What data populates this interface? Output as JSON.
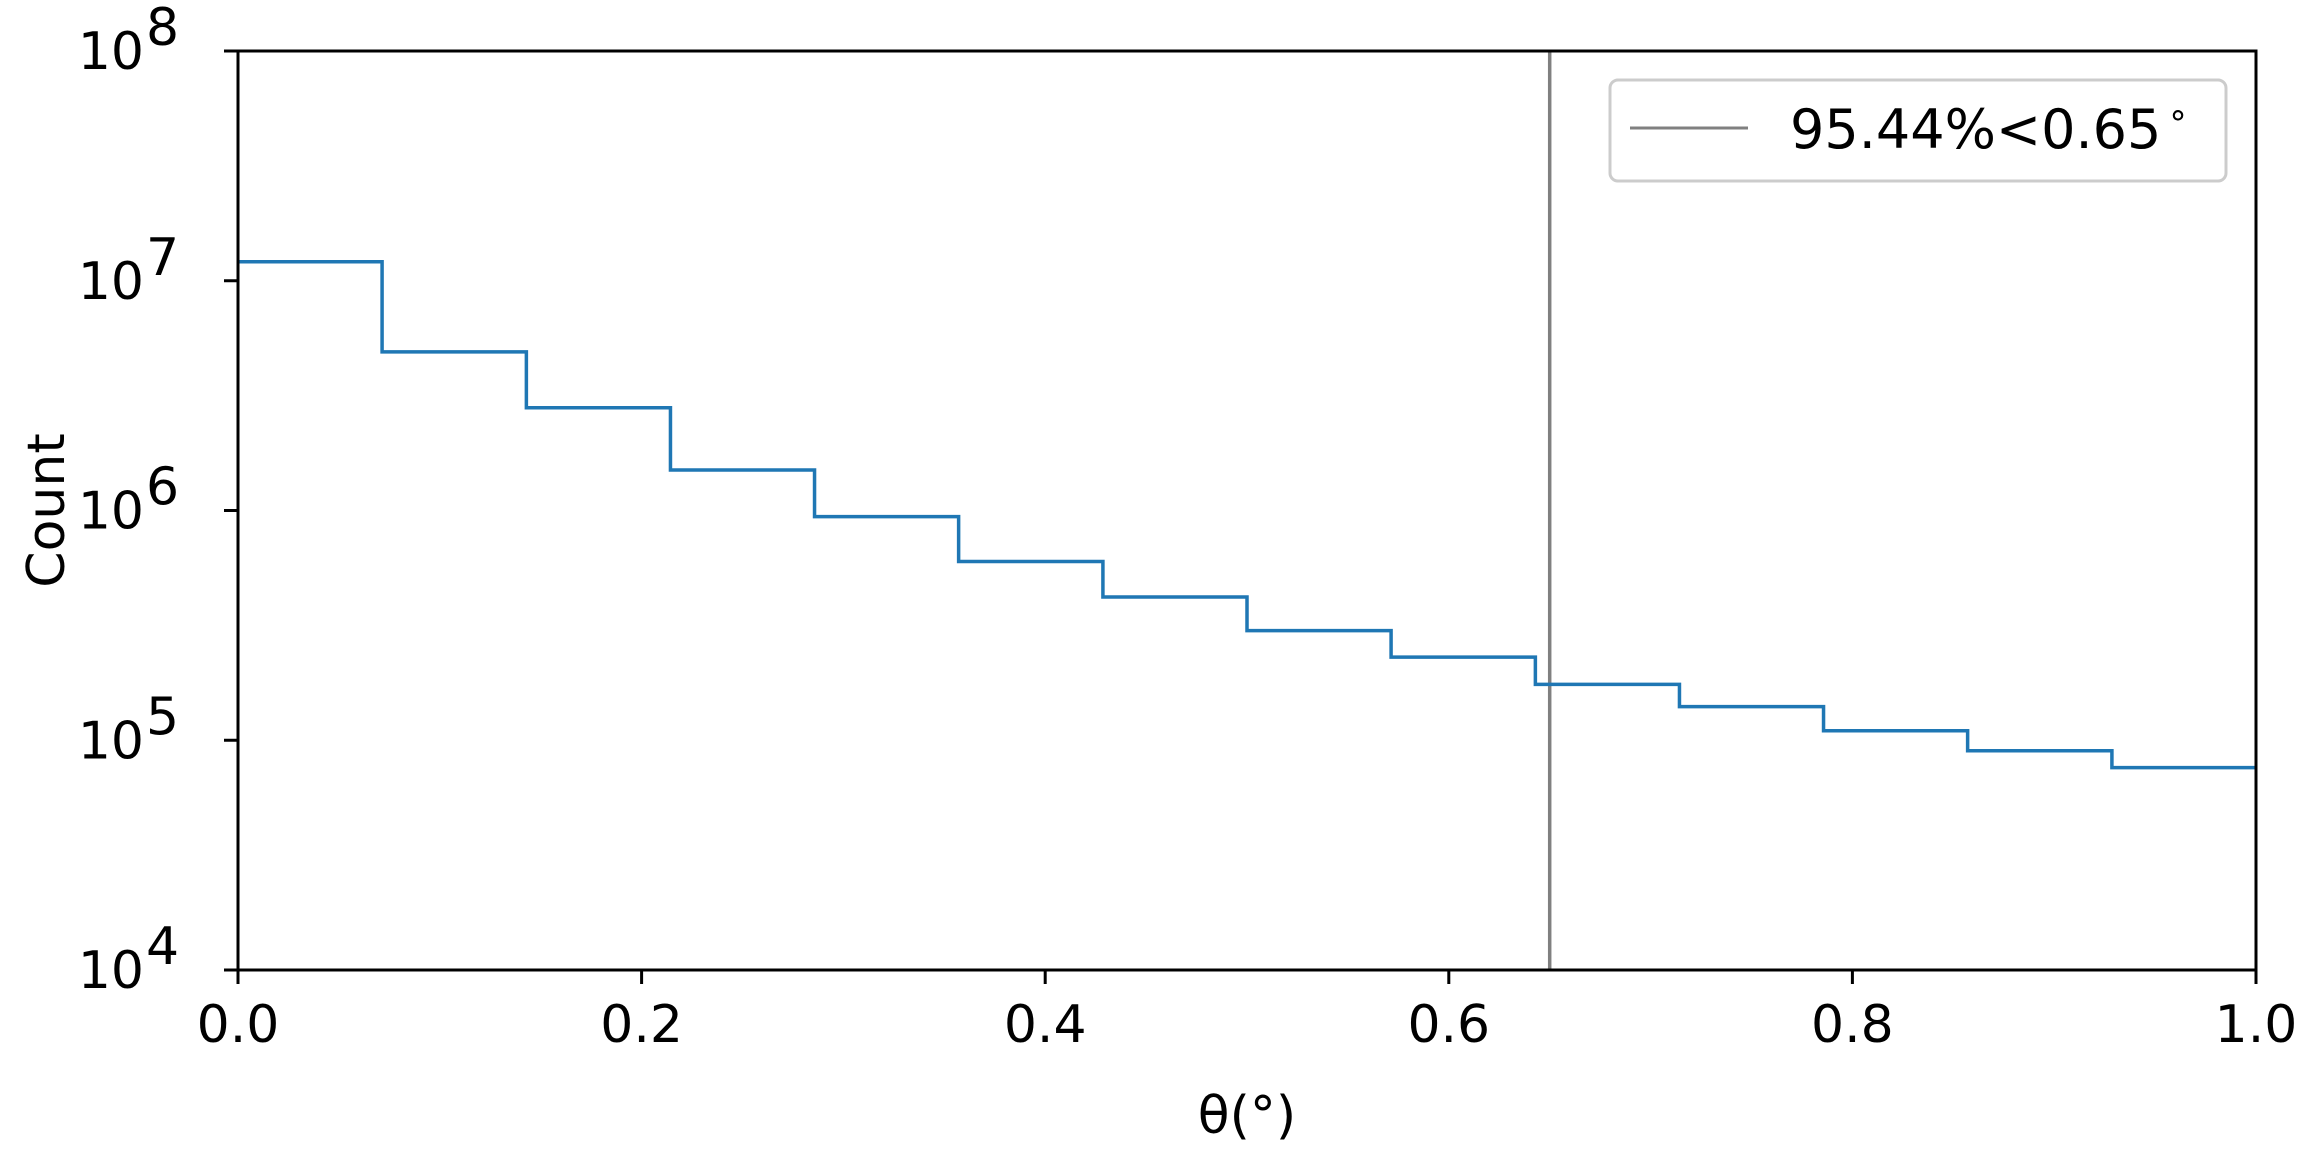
{
  "chart_data": {
    "type": "line",
    "drawstyle": "steps-post",
    "xlabel": "θ(°)",
    "ylabel": "Count",
    "xlim": [
      0.0,
      1.0
    ],
    "ylim": [
      10000,
      100000000
    ],
    "yscale": "log",
    "grid": false,
    "x_ticks": [
      0.0,
      0.2,
      0.4,
      0.6,
      0.8,
      1.0
    ],
    "x_tick_labels": [
      "0.0",
      "0.2",
      "0.4",
      "0.6",
      "0.8",
      "1.0"
    ],
    "y_ticks": [
      10000,
      100000,
      1000000,
      10000000,
      100000000
    ],
    "y_tick_labels": [
      {
        "base": "10",
        "exp": "4"
      },
      {
        "base": "10",
        "exp": "5"
      },
      {
        "base": "10",
        "exp": "6"
      },
      {
        "base": "10",
        "exp": "7"
      },
      {
        "base": "10",
        "exp": "8"
      }
    ],
    "series": [
      {
        "color": "#1f77b4",
        "bin_edges": [
          0.0,
          0.0714,
          0.1429,
          0.2143,
          0.2857,
          0.3571,
          0.4286,
          0.5,
          0.5714,
          0.6429,
          0.7143,
          0.7857,
          0.8571,
          0.9286,
          1.0
        ],
        "values": [
          12100000,
          4900000,
          2800000,
          1500000,
          940000,
          600000,
          420000,
          300000,
          230000,
          175000,
          140000,
          110000,
          90000,
          76000
        ]
      }
    ],
    "vline": {
      "x": 0.65,
      "color": "#808080",
      "label": "95.44%<0.65$^\\circ$"
    },
    "legend": {
      "position": "top-right",
      "label": "95.44%<0.65",
      "label_superscript": "∘"
    }
  }
}
